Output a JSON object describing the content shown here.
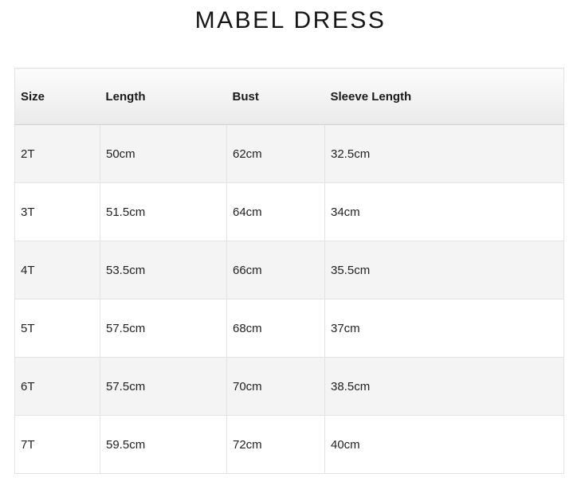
{
  "page": {
    "title": "MABEL DRESS"
  },
  "size_chart": {
    "columns": [
      "Size",
      "Length",
      "Bust",
      "Sleeve Length"
    ],
    "rows": [
      [
        "2T",
        "50cm",
        "62cm",
        "32.5cm"
      ],
      [
        "3T",
        "51.5cm",
        "64cm",
        "34cm"
      ],
      [
        "4T",
        "53.5cm",
        "66cm",
        "35.5cm"
      ],
      [
        "5T",
        "57.5cm",
        "68cm",
        "37cm"
      ],
      [
        "6T",
        "57.5cm",
        "70cm",
        "38.5cm"
      ],
      [
        "7T",
        "59.5cm",
        "72cm",
        "40cm"
      ]
    ]
  },
  "colors": {
    "row_stripe": "#f4f4f4",
    "table_border": "#e3e3e3",
    "header_border_bottom": "#d2d2d2",
    "header_gradient_top": "#fcfcfc",
    "header_gradient_bottom": "#eaeaea",
    "text": "#222222",
    "title": "#161616"
  }
}
